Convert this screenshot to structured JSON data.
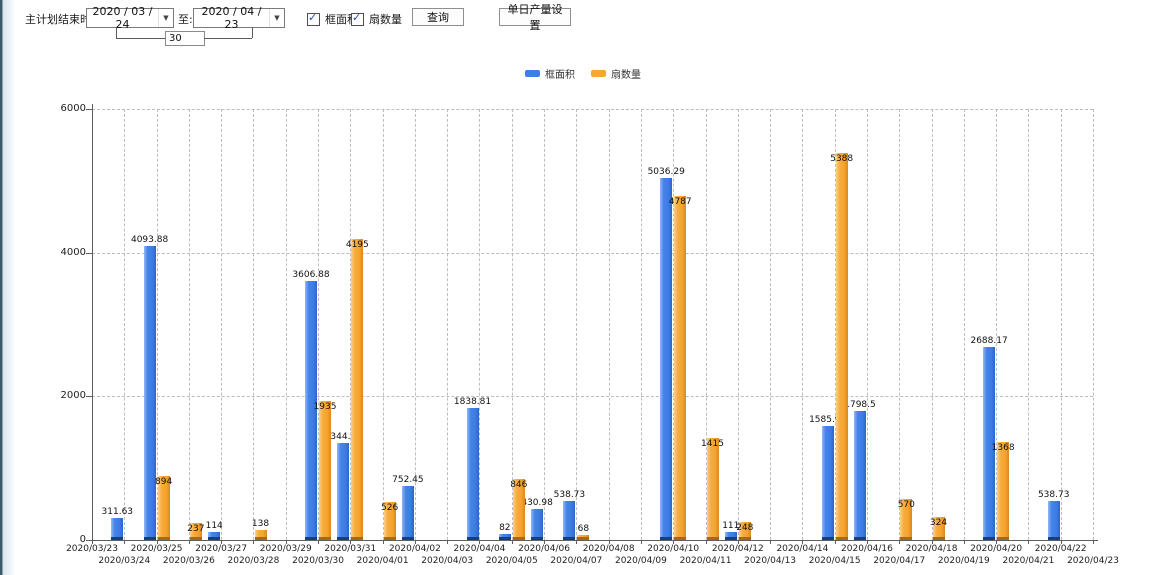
{
  "toolbar": {
    "period_label": "主计划结束时间:",
    "date_from": "2020 / 03 / 24",
    "to_label": "至:",
    "date_to": "2020 / 04 / 23",
    "day_span_value": "30",
    "checkbox_frame_area": "框面积",
    "checkbox_fan_count": "扇数量",
    "query_button": "查询",
    "daily_output_button": "单日产量设置"
  },
  "legend": {
    "items": [
      {
        "label": "框面积",
        "color": "#3e7ee6"
      },
      {
        "label": "扇数量",
        "color": "#f6a832"
      }
    ]
  },
  "colors": {
    "series_frame_area": "#3e7ee6",
    "series_fan_count": "#f6a832",
    "gridline": "#bdbdbd",
    "axis": "#5f5f5f"
  },
  "chart_data": {
    "type": "bar",
    "title": "",
    "xlabel": "",
    "ylabel": "",
    "ylim": [
      0,
      6000
    ],
    "y_ticks": [
      0,
      2000,
      4000,
      6000
    ],
    "grid": true,
    "legend_position": "top",
    "categories": [
      "2020/03/23",
      "2020/03/24",
      "2020/03/25",
      "2020/03/26",
      "2020/03/27",
      "2020/03/28",
      "2020/03/29",
      "2020/03/30",
      "2020/03/31",
      "2020/04/01",
      "2020/04/02",
      "2020/04/03",
      "2020/04/04",
      "2020/04/05",
      "2020/04/06",
      "2020/04/07",
      "2020/04/08",
      "2020/04/09",
      "2020/04/10",
      "2020/04/11",
      "2020/04/12",
      "2020/04/13",
      "2020/04/14",
      "2020/04/15",
      "2020/04/16",
      "2020/04/17",
      "2020/04/18",
      "2020/04/19",
      "2020/04/20",
      "2020/04/21",
      "2020/04/22",
      "2020/04/23"
    ],
    "series": [
      {
        "name": "框面积",
        "color": "#3e7ee6",
        "values": [
          null,
          311.63,
          4093.88,
          null,
          114,
          null,
          null,
          3606.88,
          1344.95,
          null,
          752.45,
          null,
          1838.81,
          82,
          430.98,
          538.73,
          null,
          null,
          5036.29,
          null,
          111,
          null,
          null,
          1585.96,
          1798.5,
          null,
          null,
          null,
          2688.17,
          null,
          538.73,
          null
        ]
      },
      {
        "name": "扇数量",
        "color": "#f6a832",
        "values": [
          null,
          null,
          894,
          237,
          null,
          138,
          null,
          1935,
          4195,
          526,
          null,
          null,
          null,
          846,
          null,
          68,
          null,
          null,
          4787,
          1415,
          248,
          null,
          null,
          5388,
          null,
          570,
          324,
          null,
          1368,
          null,
          null,
          null
        ]
      }
    ]
  }
}
